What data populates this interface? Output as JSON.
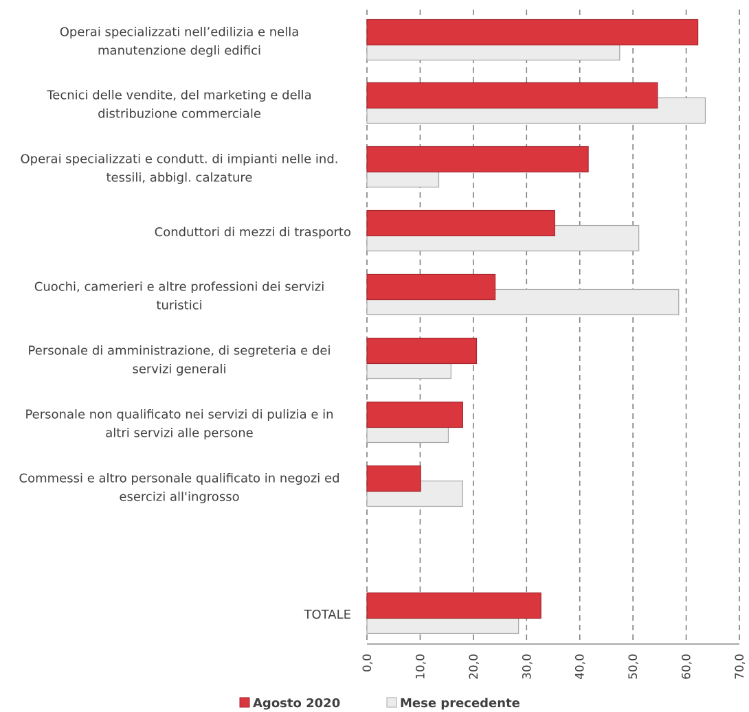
{
  "chart_data": {
    "type": "bar",
    "orientation": "horizontal",
    "categories": [
      [
        "Operai specializzati nell’edilizia e nella",
        "manutenzione degli edifici"
      ],
      [
        "Tecnici delle vendite, del marketing e della",
        "distribuzione commerciale"
      ],
      [
        "Operai specializzati e condutt. di impianti nelle ind.",
        "tessili, abbigl. calzature"
      ],
      [
        "Conduttori di mezzi di trasporto"
      ],
      [
        "Cuochi, camerieri e altre professioni dei servizi",
        "turistici"
      ],
      [
        "Personale di amministrazione, di segreteria e dei",
        "servizi generali"
      ],
      [
        "Personale non qualificato nei servizi di pulizia e in",
        "altri servizi alle persone"
      ],
      [
        "Commessi e altro personale qualificato in negozi ed",
        "esercizi all'ingrosso"
      ],
      [
        "TOTALE"
      ]
    ],
    "series": [
      {
        "name": "Agosto 2020",
        "color": "#d9363e",
        "values": [
          62.2,
          54.6,
          41.6,
          35.3,
          24.1,
          20.6,
          18.0,
          10.1,
          32.7
        ]
      },
      {
        "name": "Mese precedente",
        "color": "#ececec",
        "values": [
          47.5,
          63.6,
          13.5,
          51.1,
          58.6,
          15.8,
          15.3,
          18.0,
          28.5
        ]
      }
    ],
    "x_ticks": [
      "0,0",
      "10,0",
      "20,0",
      "30,0",
      "40,0",
      "50,0",
      "60,0",
      "70,0"
    ],
    "xlim": [
      0,
      70
    ],
    "grid": "vertical dashed",
    "legend_position": "bottom"
  }
}
